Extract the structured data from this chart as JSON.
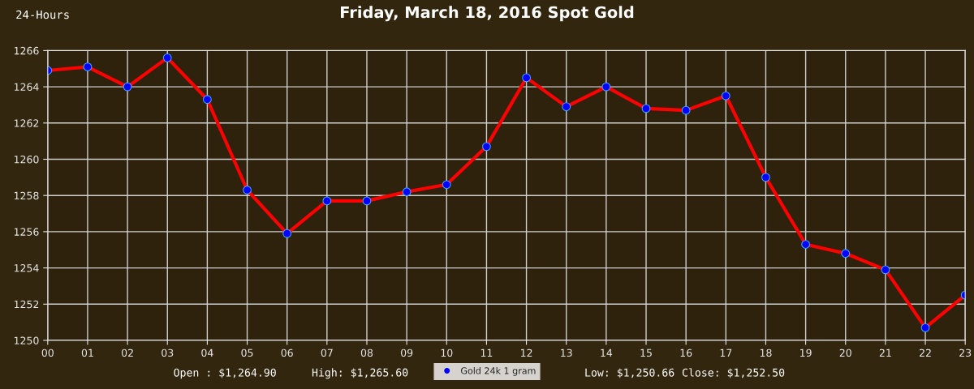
{
  "chart_data": {
    "type": "line",
    "title": "Friday, March 18, 2016 Spot Gold",
    "categories": [
      "00",
      "01",
      "02",
      "03",
      "04",
      "05",
      "06",
      "07",
      "08",
      "09",
      "10",
      "11",
      "12",
      "13",
      "14",
      "15",
      "16",
      "17",
      "18",
      "19",
      "20",
      "21",
      "22",
      "23"
    ],
    "series": [
      {
        "name": "Gold 24k 1 gram",
        "color": "#ff0000",
        "values": [
          1264.9,
          1265.1,
          1264.0,
          1265.6,
          1263.3,
          1258.3,
          1255.9,
          1257.7,
          1257.7,
          1258.2,
          1258.6,
          1260.7,
          1264.5,
          1262.9,
          1264.0,
          1262.8,
          1262.7,
          1263.5,
          1259.0,
          1255.3,
          1254.8,
          1253.9,
          1250.7,
          1252.5
        ]
      }
    ],
    "ylim": [
      1250,
      1266
    ],
    "yticks": [
      1250,
      1252,
      1254,
      1256,
      1258,
      1260,
      1262,
      1264,
      1266
    ],
    "grid": true,
    "legend": "bottom",
    "marker": "circle",
    "line_style": "solid",
    "annotations": [
      "24-Hours",
      "Open : $1,264.90",
      "High: $1,265.60",
      "Low: $1,250.66",
      "Close: $1,252.50"
    ]
  }
}
